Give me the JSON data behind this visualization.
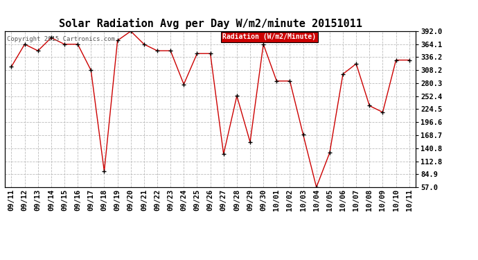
{
  "title": "Solar Radiation Avg per Day W/m2/minute 20151011",
  "copyright": "Copyright 2015 Cartronics.com",
  "legend_label": "Radiation (W/m2/Minute)",
  "x_labels": [
    "09/11",
    "09/12",
    "09/13",
    "09/14",
    "09/15",
    "09/16",
    "09/17",
    "09/18",
    "09/19",
    "09/20",
    "09/21",
    "09/22",
    "09/23",
    "09/24",
    "09/25",
    "09/26",
    "09/27",
    "09/28",
    "09/29",
    "09/30",
    "10/01",
    "10/02",
    "10/03",
    "10/04",
    "10/05",
    "10/06",
    "10/07",
    "10/08",
    "10/09",
    "10/10",
    "10/11"
  ],
  "y_values": [
    316,
    364,
    350,
    378,
    364,
    364,
    308,
    91,
    372,
    392,
    364,
    350,
    350,
    278,
    344,
    344,
    128,
    253,
    154,
    364,
    285,
    285,
    170,
    57,
    131,
    300,
    322,
    232,
    218,
    330,
    330
  ],
  "y_ticks": [
    57.0,
    84.9,
    112.8,
    140.8,
    168.7,
    196.6,
    224.5,
    252.4,
    280.3,
    308.2,
    336.2,
    364.1,
    392.0
  ],
  "line_color": "#cc0000",
  "marker_color": "#000000",
  "bg_color": "#ffffff",
  "grid_color": "#bbbbbb",
  "legend_bg": "#cc0000",
  "legend_text_color": "#ffffff",
  "title_fontsize": 11,
  "tick_fontsize": 7.5,
  "ylim": [
    57.0,
    392.0
  ]
}
